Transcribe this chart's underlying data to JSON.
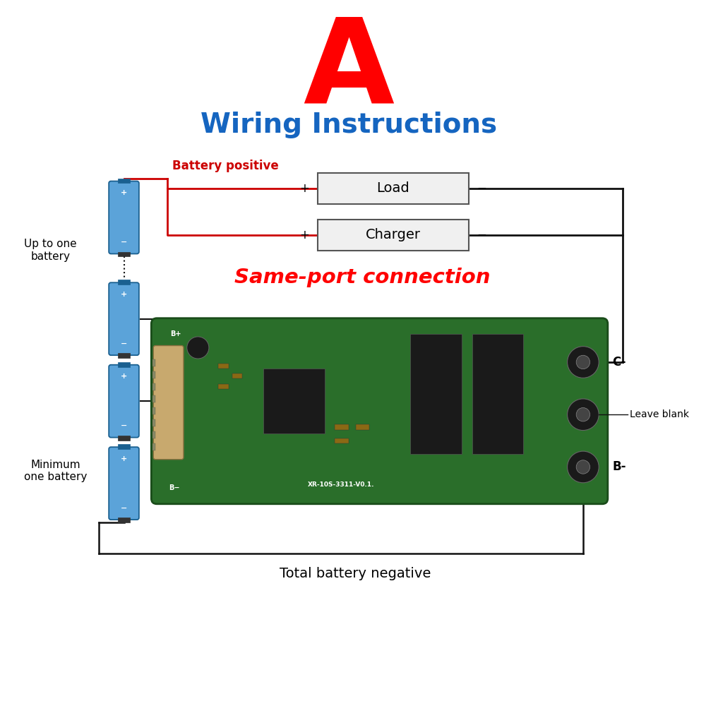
{
  "title_A": "A",
  "title_sub": "Wiring Instructions",
  "title_A_color": "#FF0000",
  "title_sub_color": "#1565C0",
  "same_port_text": "Same-port connection",
  "same_port_color": "#FF0000",
  "battery_positive_text": "Battery positive",
  "battery_positive_color": "#CC0000",
  "total_battery_neg_text": "Total battery negative",
  "load_text": "Load",
  "charger_text": "Charger",
  "up_to_one_text": "Up to one\nbattery",
  "minimum_one_text": "Minimum\none battery",
  "leave_blank_text": "Leave blank",
  "b_minus_label": "B-",
  "c_minus_label": "C-",
  "background_color": "#FFFFFF",
  "board_color": "#2A6E2A",
  "battery_color": "#5BA3D9",
  "wire_red_color": "#CC0000",
  "wire_black_color": "#111111",
  "box_facecolor": "#F0F0F0",
  "box_edgecolor": "#555555"
}
